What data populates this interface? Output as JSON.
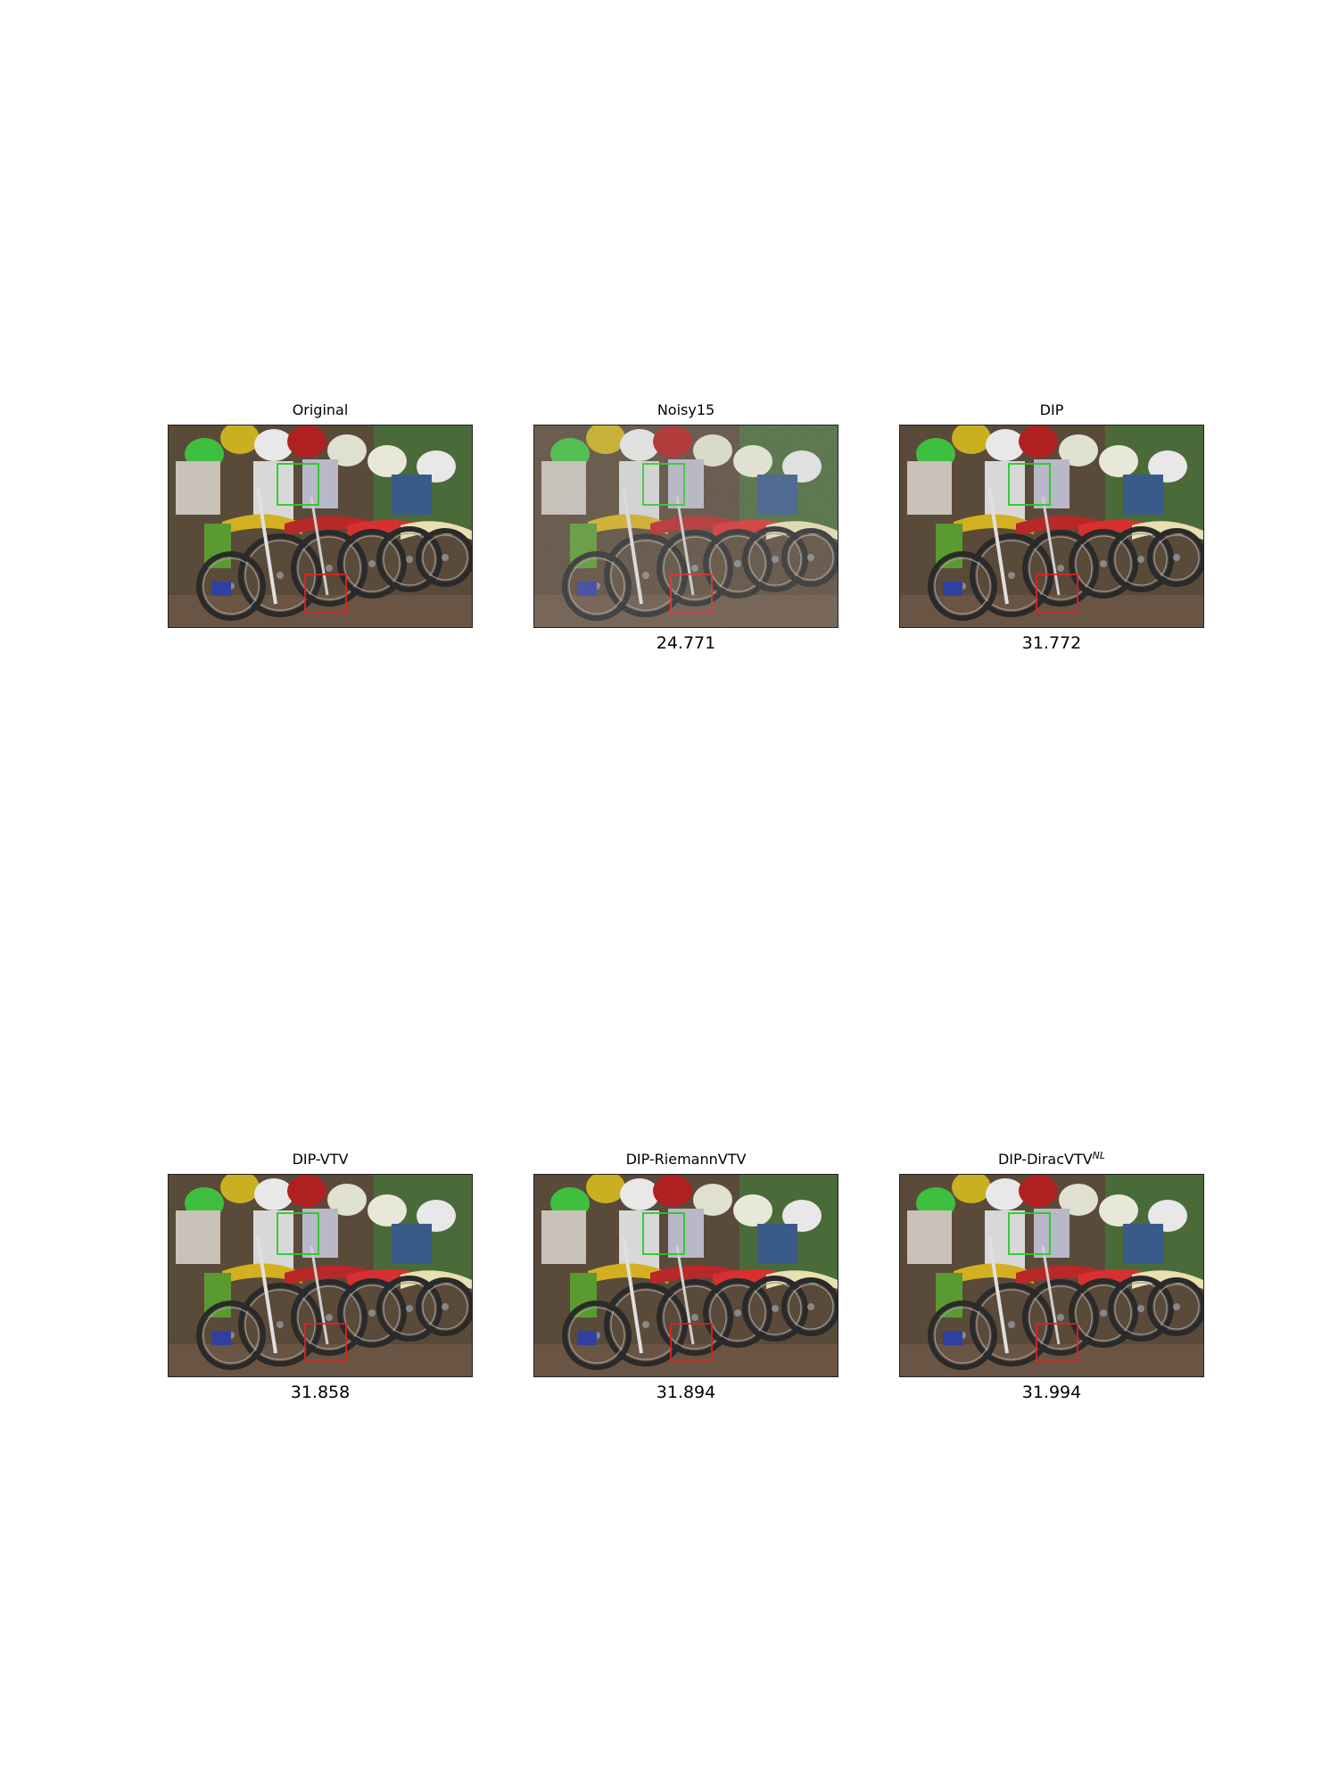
{
  "panels": [
    {
      "title": "Original",
      "title_sup": "",
      "score": ""
    },
    {
      "title": "Noisy15",
      "title_sup": "",
      "score": "24.771"
    },
    {
      "title": "DIP",
      "title_sup": "",
      "score": "31.772"
    },
    {
      "title": "DIP-VTV",
      "title_sup": "",
      "score": "31.858"
    },
    {
      "title": "DIP-RiemannVTV",
      "title_sup": "",
      "score": "31.894"
    },
    {
      "title": "DIP-DiracVTV",
      "title_sup": "NL",
      "score": "31.994"
    }
  ],
  "roi_colors": {
    "green": "#22cc22",
    "red": "#dd2222"
  }
}
